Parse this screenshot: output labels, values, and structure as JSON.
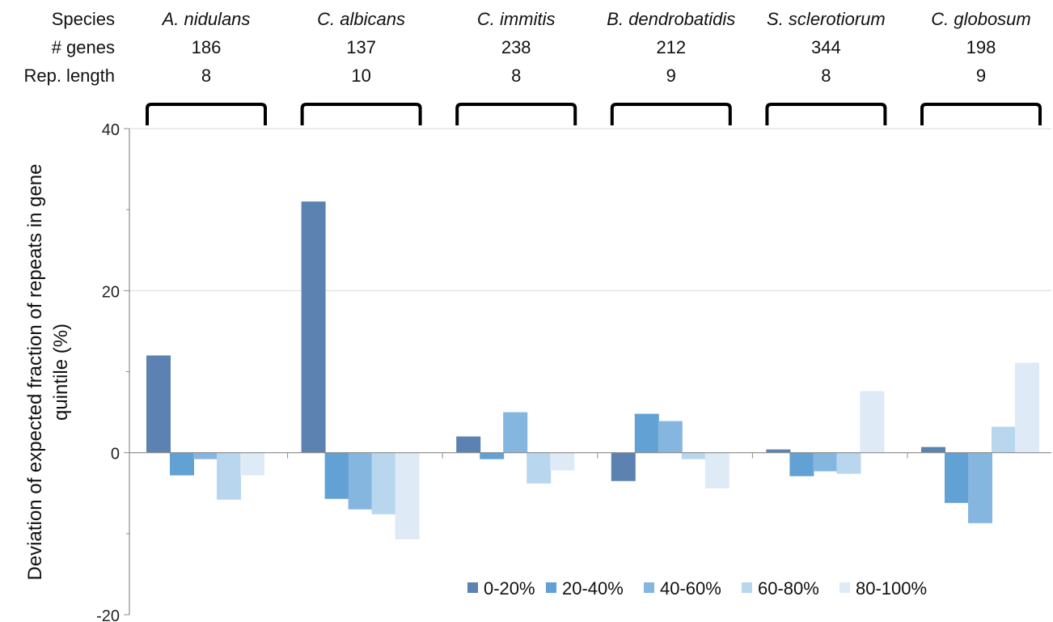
{
  "chart_data": {
    "type": "bar",
    "categories": [
      "A. nidulans",
      "C. albicans",
      "C. immitis",
      "B. dendrobatidis",
      "S. sclerotiorum",
      "C. globosum"
    ],
    "header_rows": [
      {
        "label": "Species",
        "values": [
          "A. nidulans",
          "C. albicans",
          "C. immitis",
          "B. dendrobatidis",
          "S. sclerotiorum",
          "C. globosum"
        ],
        "italic": true
      },
      {
        "label": "# genes",
        "values": [
          "186",
          "137",
          "238",
          "212",
          "344",
          "198"
        ],
        "italic": false
      },
      {
        "label": "Rep. length",
        "values": [
          "8",
          "10",
          "8",
          "9",
          "8",
          "9"
        ],
        "italic": false
      }
    ],
    "series": [
      {
        "name": "0-20%",
        "color": "#5b82b0",
        "values": [
          12,
          31,
          2,
          -3.5,
          0.4,
          0.7
        ]
      },
      {
        "name": "20-40%",
        "color": "#62a1d3",
        "values": [
          -2.8,
          -5.7,
          -0.8,
          4.8,
          -2.9,
          -6.2
        ]
      },
      {
        "name": "40-60%",
        "color": "#85b6df",
        "values": [
          -0.8,
          -7,
          5,
          3.9,
          -2.3,
          -8.7
        ]
      },
      {
        "name": "60-80%",
        "color": "#b8d6ee",
        "values": [
          -5.8,
          -7.6,
          -3.8,
          -0.8,
          -2.6,
          3.2
        ]
      },
      {
        "name": "80-100%",
        "color": "#deeaf6",
        "values": [
          -2.8,
          -10.7,
          -2.2,
          -4.4,
          7.6,
          11.1
        ]
      }
    ],
    "ylabel": "Deviation of expected fraction of repeats in gene quintile (%)",
    "ylabel_lines": [
      "Deviation of expected fraction of repeats in gene",
      "quintile (%)"
    ],
    "ylim": [
      -20,
      40
    ],
    "yticks": [
      -20,
      0,
      20,
      40
    ],
    "legend_position": "bottom-right",
    "grid": true
  }
}
